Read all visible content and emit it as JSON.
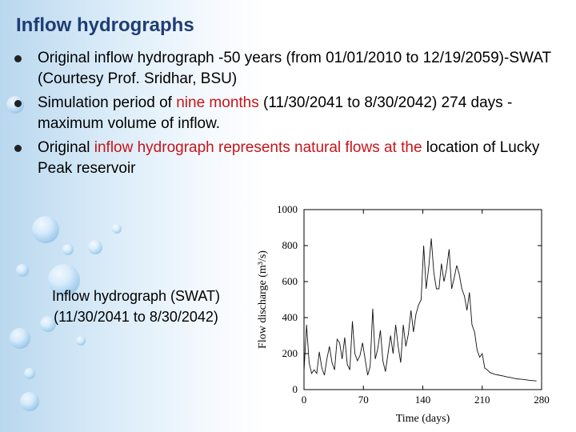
{
  "slide": {
    "title": "Inflow hydrographs",
    "bullets": [
      {
        "parts": [
          {
            "text": "Original inflow hydrograph -50 years (from 01/01/2010 to 12/19/2059)-SWAT (Courtesy Prof. Sridhar, BSU)",
            "red": false
          }
        ]
      },
      {
        "parts": [
          {
            "text": "Simulation period of ",
            "red": false
          },
          {
            "text": "nine months",
            "red": true
          },
          {
            "text": " (11/30/2041 to 8/30/2042) 274 days - maximum volume of inflow.",
            "red": false
          }
        ]
      },
      {
        "parts": [
          {
            "text": "Original ",
            "red": false
          },
          {
            "text": "inflow hydrograph represents natural flows at the",
            "red": true
          },
          {
            "text": " location of Lucky Peak reservoir",
            "red": false
          }
        ]
      }
    ],
    "caption_line1": "Inflow hydrograph (SWAT)",
    "caption_line2": "(11/30/2041 to 8/30/2042)"
  },
  "colors": {
    "title": "#1f3d74",
    "highlight": "#c8141b"
  },
  "chart_data": {
    "type": "line",
    "xlabel": "Time (days)",
    "ylabel": "Flow discharge (m³/s)",
    "xlim": [
      0,
      280
    ],
    "ylim": [
      0,
      1000
    ],
    "xticks": [
      0,
      70,
      140,
      210,
      280
    ],
    "yticks": [
      0,
      200,
      400,
      600,
      800,
      1000
    ],
    "x": [
      0,
      3,
      6,
      9,
      12,
      15,
      18,
      21,
      24,
      27,
      30,
      33,
      36,
      39,
      42,
      45,
      48,
      51,
      54,
      57,
      60,
      63,
      66,
      69,
      72,
      75,
      78,
      81,
      84,
      87,
      90,
      93,
      96,
      99,
      102,
      105,
      108,
      111,
      114,
      117,
      120,
      123,
      126,
      129,
      132,
      135,
      138,
      141,
      144,
      147,
      150,
      153,
      156,
      159,
      162,
      165,
      168,
      171,
      174,
      177,
      180,
      183,
      186,
      189,
      192,
      195,
      198,
      201,
      204,
      207,
      210,
      213,
      216,
      219,
      222,
      225,
      230,
      235,
      240,
      245,
      250,
      255,
      260,
      265,
      270,
      274
    ],
    "y": [
      100,
      360,
      150,
      90,
      110,
      90,
      210,
      120,
      80,
      170,
      240,
      150,
      110,
      280,
      260,
      170,
      290,
      140,
      110,
      380,
      200,
      160,
      190,
      260,
      170,
      80,
      130,
      450,
      170,
      230,
      330,
      160,
      100,
      200,
      300,
      200,
      360,
      240,
      150,
      360,
      240,
      310,
      440,
      320,
      420,
      470,
      500,
      800,
      560,
      680,
      840,
      650,
      560,
      560,
      700,
      600,
      670,
      780,
      560,
      620,
      690,
      640,
      560,
      520,
      440,
      540,
      360,
      320,
      220,
      180,
      200,
      120,
      110,
      95,
      90,
      85,
      80,
      75,
      70,
      66,
      60,
      58,
      55,
      52,
      50,
      48
    ]
  }
}
